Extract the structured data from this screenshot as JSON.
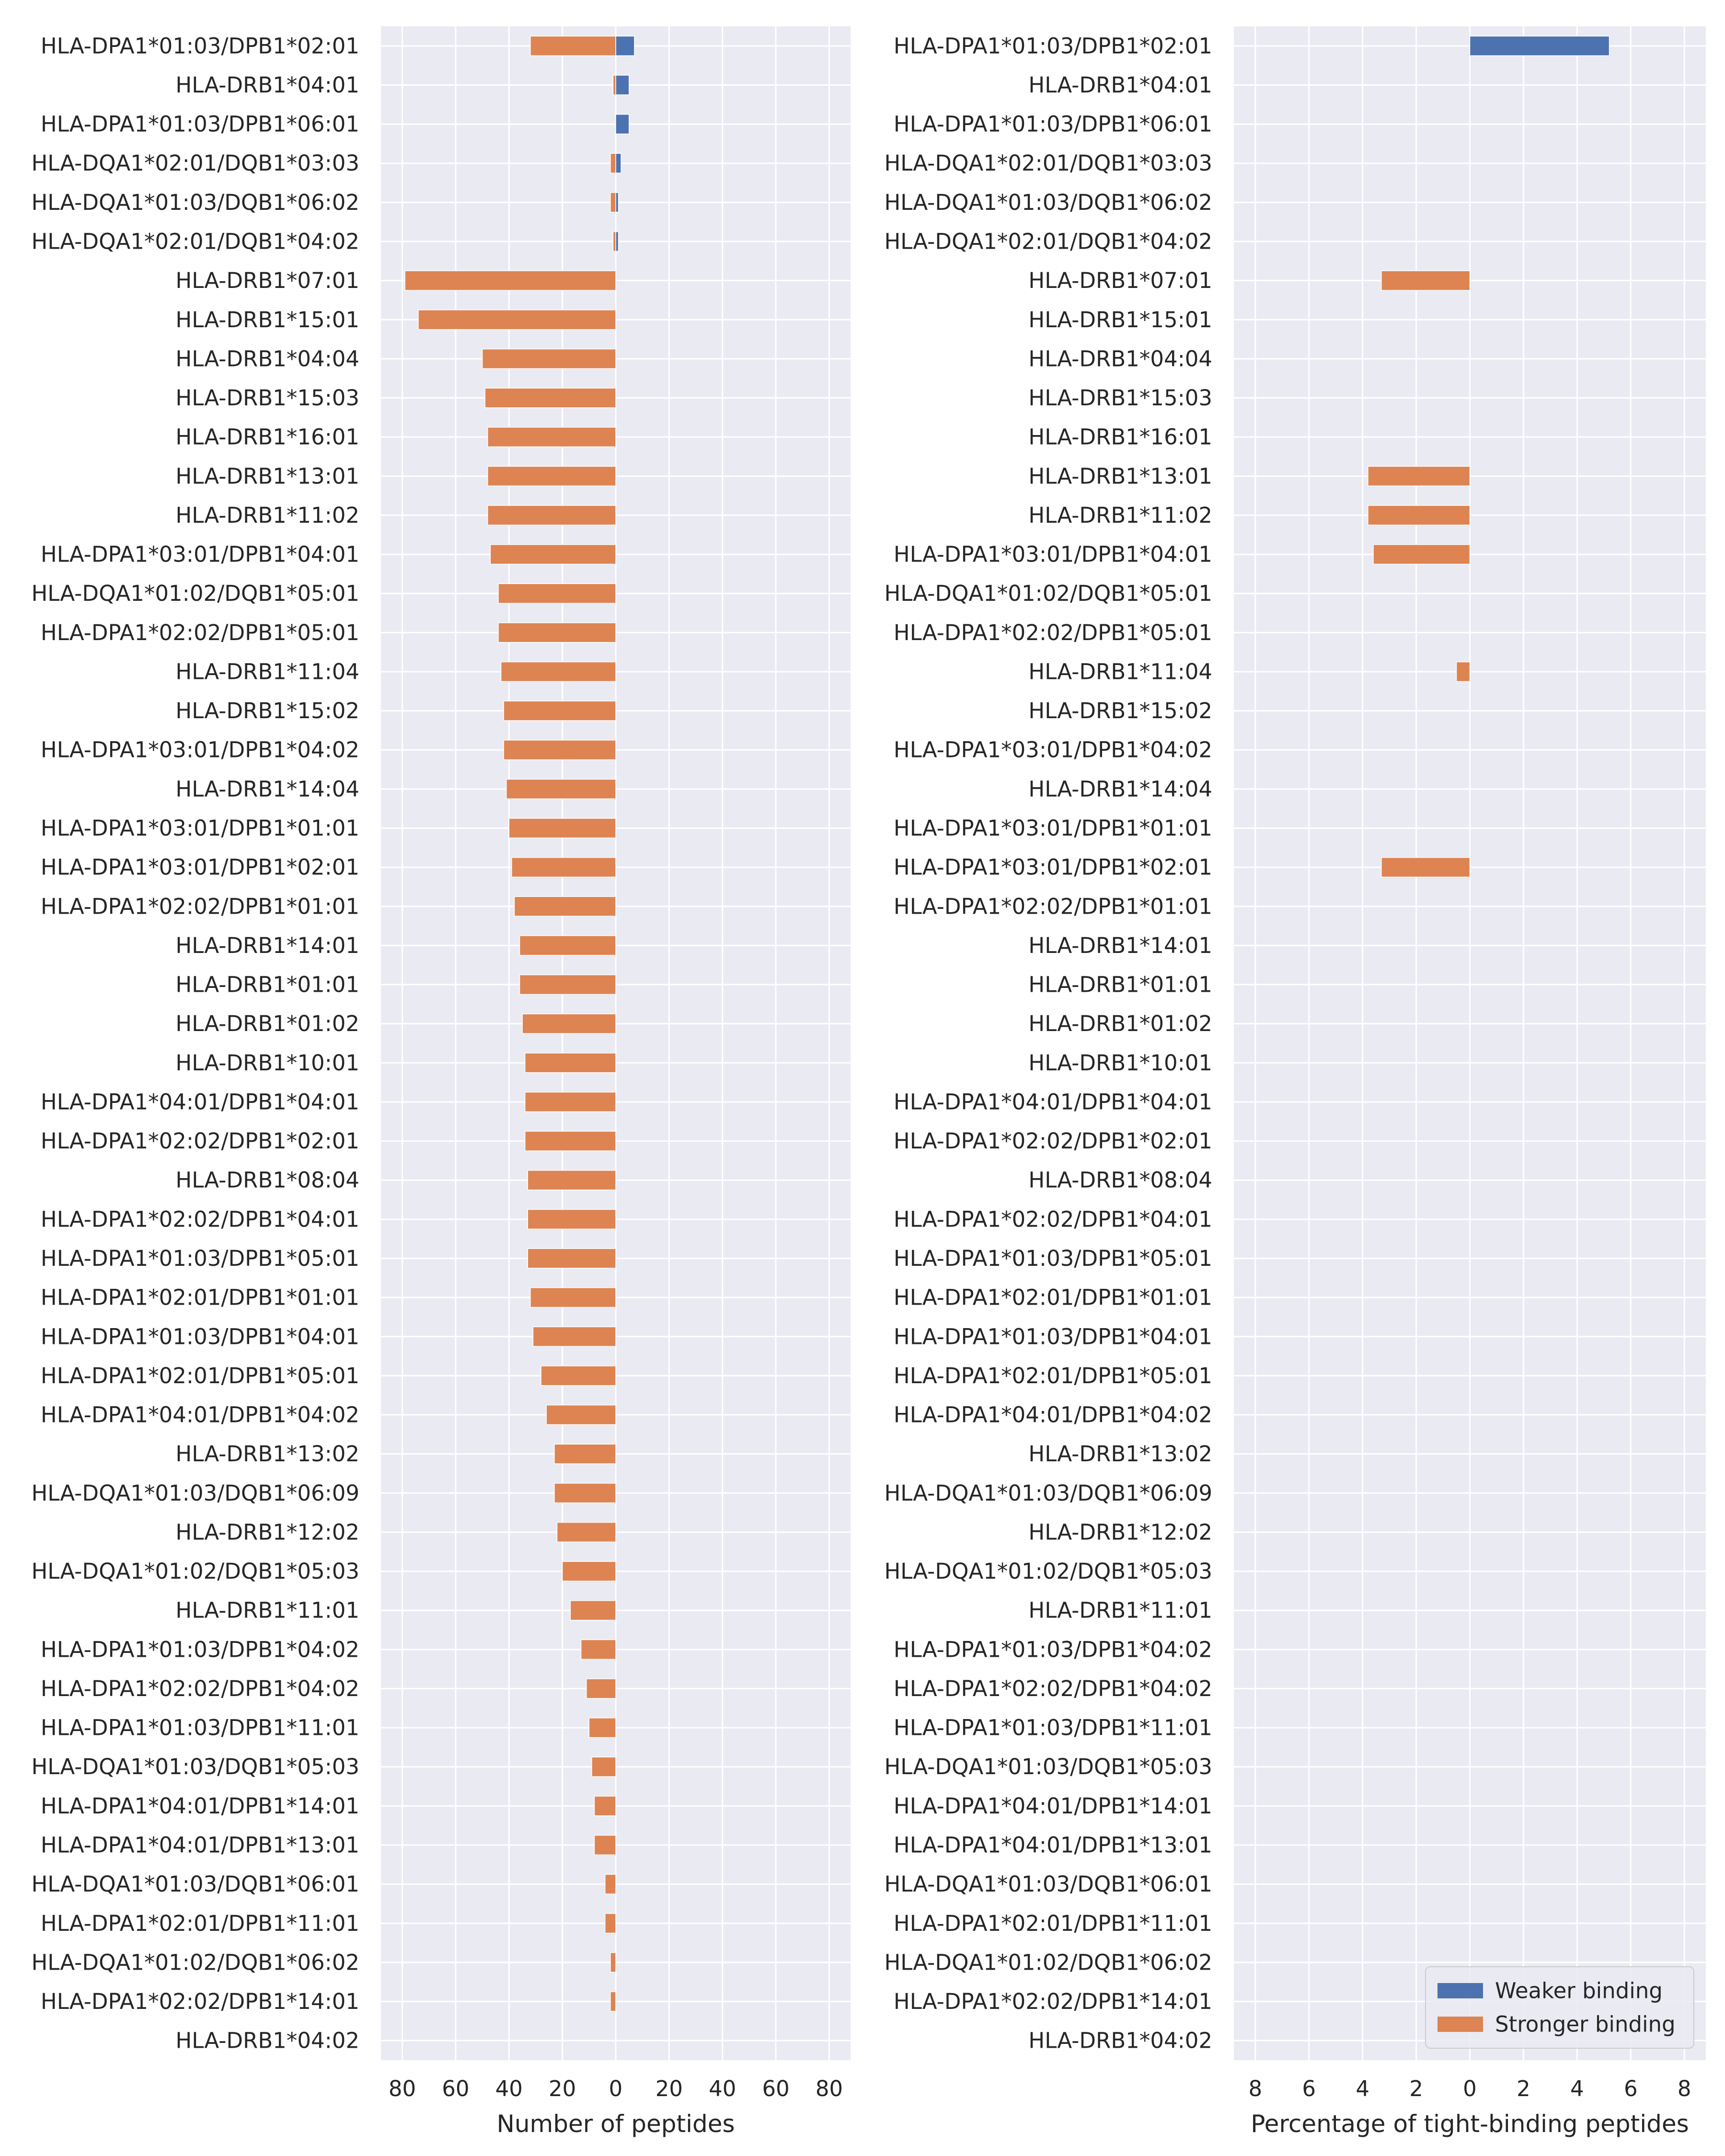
{
  "colors": {
    "panel_bg": "#eaeaf2",
    "grid": "#ffffff",
    "weaker": "#4c72b0",
    "stronger": "#dd8452",
    "text": "#262626"
  },
  "chart_data": [
    {
      "type": "bar",
      "orientation": "horizontal",
      "layout": "diverging",
      "xlabel": "Number of peptides",
      "xlim": [
        -88,
        88
      ],
      "xticks": [
        -80,
        -60,
        -40,
        -20,
        0,
        20,
        40,
        60,
        80
      ],
      "xtick_labels": [
        "80",
        "60",
        "40",
        "20",
        "0",
        "20",
        "40",
        "60",
        "80"
      ],
      "grid": true,
      "categories": [
        "HLA-DPA1*01:03/DPB1*02:01",
        "HLA-DRB1*04:01",
        "HLA-DPA1*01:03/DPB1*06:01",
        "HLA-DQA1*02:01/DQB1*03:03",
        "HLA-DQA1*01:03/DQB1*06:02",
        "HLA-DQA1*02:01/DQB1*04:02",
        "HLA-DRB1*07:01",
        "HLA-DRB1*15:01",
        "HLA-DRB1*04:04",
        "HLA-DRB1*15:03",
        "HLA-DRB1*16:01",
        "HLA-DRB1*13:01",
        "HLA-DRB1*11:02",
        "HLA-DPA1*03:01/DPB1*04:01",
        "HLA-DQA1*01:02/DQB1*05:01",
        "HLA-DPA1*02:02/DPB1*05:01",
        "HLA-DRB1*11:04",
        "HLA-DRB1*15:02",
        "HLA-DPA1*03:01/DPB1*04:02",
        "HLA-DRB1*14:04",
        "HLA-DPA1*03:01/DPB1*01:01",
        "HLA-DPA1*03:01/DPB1*02:01",
        "HLA-DPA1*02:02/DPB1*01:01",
        "HLA-DRB1*14:01",
        "HLA-DRB1*01:01",
        "HLA-DRB1*01:02",
        "HLA-DRB1*10:01",
        "HLA-DPA1*04:01/DPB1*04:01",
        "HLA-DPA1*02:02/DPB1*02:01",
        "HLA-DRB1*08:04",
        "HLA-DPA1*02:02/DPB1*04:01",
        "HLA-DPA1*01:03/DPB1*05:01",
        "HLA-DPA1*02:01/DPB1*01:01",
        "HLA-DPA1*01:03/DPB1*04:01",
        "HLA-DPA1*02:01/DPB1*05:01",
        "HLA-DPA1*04:01/DPB1*04:02",
        "HLA-DRB1*13:02",
        "HLA-DQA1*01:03/DQB1*06:09",
        "HLA-DRB1*12:02",
        "HLA-DQA1*01:02/DQB1*05:03",
        "HLA-DRB1*11:01",
        "HLA-DPA1*01:03/DPB1*04:02",
        "HLA-DPA1*02:02/DPB1*04:02",
        "HLA-DPA1*01:03/DPB1*11:01",
        "HLA-DQA1*01:03/DQB1*05:03",
        "HLA-DPA1*04:01/DPB1*14:01",
        "HLA-DPA1*04:01/DPB1*13:01",
        "HLA-DQA1*01:03/DQB1*06:01",
        "HLA-DPA1*02:01/DPB1*11:01",
        "HLA-DQA1*01:02/DQB1*06:02",
        "HLA-DPA1*02:02/DPB1*14:01",
        "HLA-DRB1*04:02"
      ],
      "series": [
        {
          "name": "Weaker binding",
          "direction": "right",
          "values": [
            7,
            5,
            5,
            2,
            1,
            1,
            0,
            0,
            0,
            0,
            0,
            0,
            0,
            0,
            0,
            0,
            0,
            0,
            0,
            0,
            0,
            0,
            0,
            0,
            0,
            0,
            0,
            0,
            0,
            0,
            0,
            0,
            0,
            0,
            0,
            0,
            0,
            0,
            0,
            0,
            0,
            0,
            0,
            0,
            0,
            0,
            0,
            0,
            0,
            0,
            0,
            0
          ]
        },
        {
          "name": "Stronger binding",
          "direction": "left",
          "values": [
            32,
            1,
            0,
            2,
            2,
            1,
            79,
            74,
            50,
            49,
            48,
            48,
            48,
            47,
            44,
            44,
            43,
            42,
            42,
            41,
            40,
            39,
            38,
            36,
            36,
            35,
            34,
            34,
            34,
            33,
            33,
            33,
            32,
            31,
            28,
            26,
            23,
            23,
            22,
            20,
            17,
            13,
            11,
            10,
            9,
            8,
            8,
            4,
            4,
            2,
            2,
            0
          ]
        }
      ]
    },
    {
      "type": "bar",
      "orientation": "horizontal",
      "layout": "diverging",
      "xlabel": "Percentage of tight-binding peptides",
      "xlim": [
        -8.8,
        8.8
      ],
      "xticks": [
        -8,
        -6,
        -4,
        -2,
        0,
        2,
        4,
        6,
        8
      ],
      "xtick_labels": [
        "8",
        "6",
        "4",
        "2",
        "0",
        "2",
        "4",
        "6",
        "8"
      ],
      "grid": true,
      "legend_position": "lower-right",
      "legend": [
        "Weaker binding",
        "Stronger binding"
      ],
      "categories": [
        "HLA-DPA1*01:03/DPB1*02:01",
        "HLA-DRB1*04:01",
        "HLA-DPA1*01:03/DPB1*06:01",
        "HLA-DQA1*02:01/DQB1*03:03",
        "HLA-DQA1*01:03/DQB1*06:02",
        "HLA-DQA1*02:01/DQB1*04:02",
        "HLA-DRB1*07:01",
        "HLA-DRB1*15:01",
        "HLA-DRB1*04:04",
        "HLA-DRB1*15:03",
        "HLA-DRB1*16:01",
        "HLA-DRB1*13:01",
        "HLA-DRB1*11:02",
        "HLA-DPA1*03:01/DPB1*04:01",
        "HLA-DQA1*01:02/DQB1*05:01",
        "HLA-DPA1*02:02/DPB1*05:01",
        "HLA-DRB1*11:04",
        "HLA-DRB1*15:02",
        "HLA-DPA1*03:01/DPB1*04:02",
        "HLA-DRB1*14:04",
        "HLA-DPA1*03:01/DPB1*01:01",
        "HLA-DPA1*03:01/DPB1*02:01",
        "HLA-DPA1*02:02/DPB1*01:01",
        "HLA-DRB1*14:01",
        "HLA-DRB1*01:01",
        "HLA-DRB1*01:02",
        "HLA-DRB1*10:01",
        "HLA-DPA1*04:01/DPB1*04:01",
        "HLA-DPA1*02:02/DPB1*02:01",
        "HLA-DRB1*08:04",
        "HLA-DPA1*02:02/DPB1*04:01",
        "HLA-DPA1*01:03/DPB1*05:01",
        "HLA-DPA1*02:01/DPB1*01:01",
        "HLA-DPA1*01:03/DPB1*04:01",
        "HLA-DPA1*02:01/DPB1*05:01",
        "HLA-DPA1*04:01/DPB1*04:02",
        "HLA-DRB1*13:02",
        "HLA-DQA1*01:03/DQB1*06:09",
        "HLA-DRB1*12:02",
        "HLA-DQA1*01:02/DQB1*05:03",
        "HLA-DRB1*11:01",
        "HLA-DPA1*01:03/DPB1*04:02",
        "HLA-DPA1*02:02/DPB1*04:02",
        "HLA-DPA1*01:03/DPB1*11:01",
        "HLA-DQA1*01:03/DQB1*05:03",
        "HLA-DPA1*04:01/DPB1*14:01",
        "HLA-DPA1*04:01/DPB1*13:01",
        "HLA-DQA1*01:03/DQB1*06:01",
        "HLA-DPA1*02:01/DPB1*11:01",
        "HLA-DQA1*01:02/DQB1*06:02",
        "HLA-DPA1*02:02/DPB1*14:01",
        "HLA-DRB1*04:02"
      ],
      "series": [
        {
          "name": "Weaker binding",
          "direction": "right",
          "values": [
            5.2,
            0,
            0,
            0,
            0,
            0,
            0,
            0,
            0,
            0,
            0,
            0,
            0,
            0,
            0,
            0,
            0,
            0,
            0,
            0,
            0,
            0,
            0,
            0,
            0,
            0,
            0,
            0,
            0,
            0,
            0,
            0,
            0,
            0,
            0,
            0,
            0,
            0,
            0,
            0,
            0,
            0,
            0,
            0,
            0,
            0,
            0,
            0,
            0,
            0,
            0,
            0
          ]
        },
        {
          "name": "Stronger binding",
          "direction": "left",
          "values": [
            0,
            0,
            0,
            0,
            0,
            0,
            3.3,
            0,
            0,
            0,
            0,
            3.8,
            3.8,
            3.6,
            0,
            0,
            0.5,
            0,
            0,
            0,
            0,
            3.3,
            0,
            0,
            0,
            0,
            0,
            0,
            0,
            0,
            0,
            0,
            0,
            0,
            0,
            0,
            0,
            0,
            0,
            0,
            0,
            0,
            0,
            0,
            0,
            0,
            0,
            0,
            0,
            0,
            0,
            0
          ]
        }
      ]
    }
  ]
}
